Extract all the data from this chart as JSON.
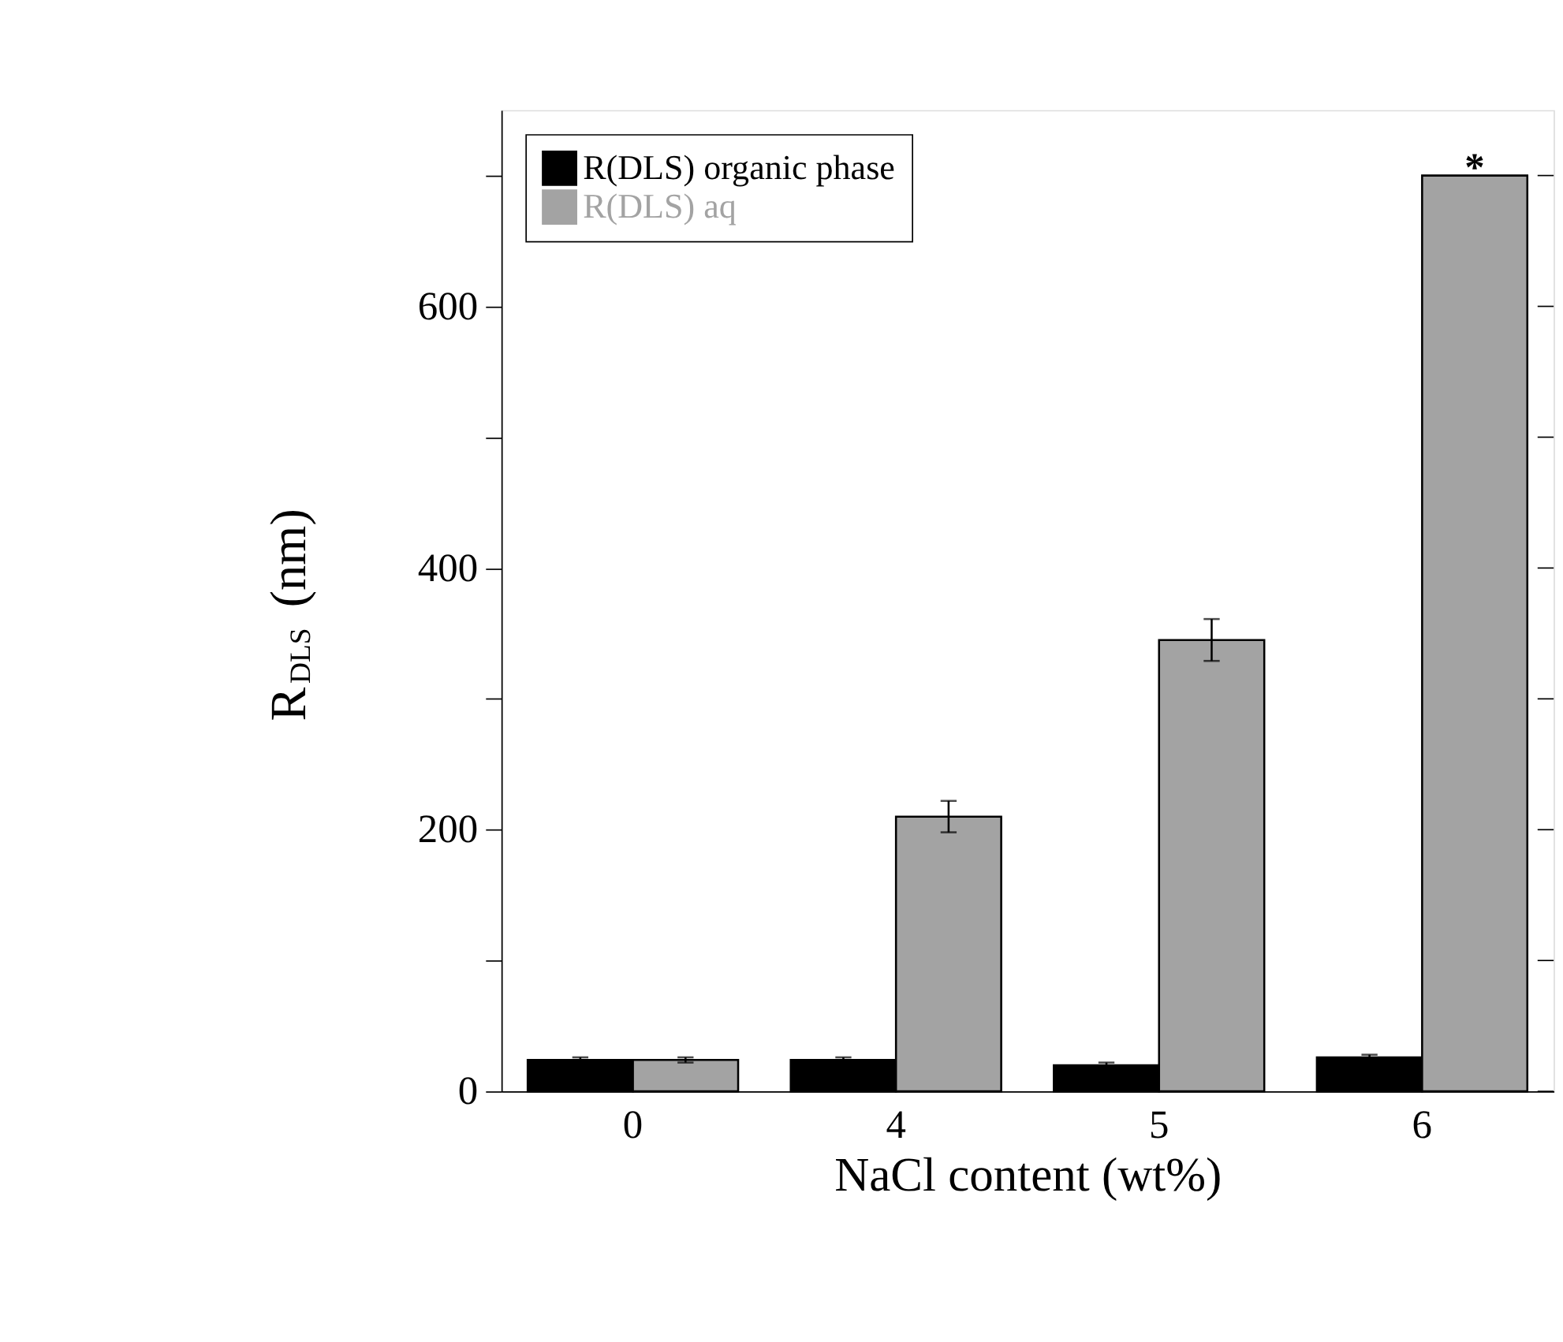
{
  "chart_data": {
    "type": "bar",
    "xlabel": "NaCl content (wt%)",
    "ylabel": "R$_{DLS}$ (nm)",
    "categories": [
      "0",
      "4",
      "5",
      "6"
    ],
    "series": [
      {
        "name": "R(DLS) organic phase",
        "color": "#000000",
        "values": [
          24,
          24,
          20,
          26
        ],
        "errors": [
          2,
          2,
          2,
          2
        ]
      },
      {
        "name": "R(DLS) aq",
        "color": "#a3a3a3",
        "values": [
          24,
          210,
          345,
          700
        ],
        "errors": [
          2,
          12,
          16,
          null
        ]
      }
    ],
    "ylim": [
      0,
      750
    ],
    "yticks": [
      0,
      {
        "value": 100,
        "label": null
      },
      200,
      {
        "value": 300,
        "label": null
      },
      400,
      {
        "value": 500,
        "label": null
      },
      600,
      {
        "value": 700,
        "label": null
      }
    ],
    "annotations": [
      {
        "text": "*",
        "x": "6",
        "y": 700
      }
    ],
    "legend": "top left",
    "grid": false
  }
}
